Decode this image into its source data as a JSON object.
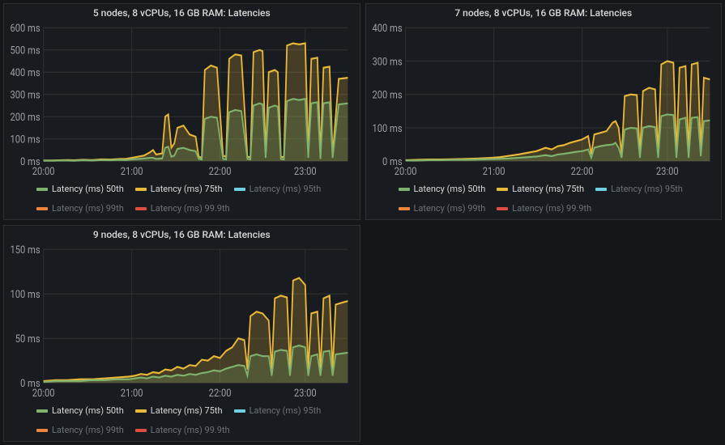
{
  "background_color": "#141619",
  "panel_background": "#181b1f",
  "grid_color": "#2c2f33",
  "tick_text_color": "#9aa0a6",
  "legend_text_color": "#d8d9da",
  "legend_dim_color": "#6e7277",
  "line_width": 1.8,
  "area_opacity": 0.22,
  "legend_items": [
    {
      "label": "Latency (ms) 50th",
      "color": "#7EB26D",
      "dim": false
    },
    {
      "label": "Latency (ms) 75th",
      "color": "#EAB839",
      "dim": false
    },
    {
      "label": "Latency (ms) 95th",
      "color": "#6ED0E0",
      "dim": true
    },
    {
      "label": "Latency (ms) 99th",
      "color": "#EF843C",
      "dim": true
    },
    {
      "label": "Latency (ms) 99.9th",
      "color": "#E24D42",
      "dim": true
    }
  ],
  "x_ticks": [
    {
      "t": 0,
      "label": "20:00"
    },
    {
      "t": 0.29,
      "label": "21:00"
    },
    {
      "t": 0.58,
      "label": "22:00"
    },
    {
      "t": 0.86,
      "label": "23:00"
    }
  ],
  "series_keys": [
    "s50",
    "s75"
  ],
  "series_colors": {
    "s50": "#7EB26D",
    "s75": "#EAB839"
  },
  "panels": [
    {
      "title": "5 nodes, 8 vCPUs, 16 GB RAM: Latencies",
      "y_max": 600,
      "y_step": 100,
      "y_unit": "ms",
      "points": [
        {
          "t": 0.0,
          "s50": 2,
          "s75": 3
        },
        {
          "t": 0.03,
          "s50": 2,
          "s75": 3
        },
        {
          "t": 0.05,
          "s50": 3,
          "s75": 4
        },
        {
          "t": 0.08,
          "s50": 3,
          "s75": 5
        },
        {
          "t": 0.1,
          "s50": 2,
          "s75": 4
        },
        {
          "t": 0.13,
          "s50": 4,
          "s75": 6
        },
        {
          "t": 0.16,
          "s50": 3,
          "s75": 5
        },
        {
          "t": 0.19,
          "s50": 5,
          "s75": 8
        },
        {
          "t": 0.22,
          "s50": 4,
          "s75": 7
        },
        {
          "t": 0.25,
          "s50": 6,
          "s75": 10
        },
        {
          "t": 0.27,
          "s50": 5,
          "s75": 10
        },
        {
          "t": 0.29,
          "s50": 8,
          "s75": 15
        },
        {
          "t": 0.31,
          "s50": 10,
          "s75": 20
        },
        {
          "t": 0.33,
          "s50": 12,
          "s75": 25
        },
        {
          "t": 0.35,
          "s50": 15,
          "s75": 40
        },
        {
          "t": 0.36,
          "s50": 15,
          "s75": 50
        },
        {
          "t": 0.37,
          "s50": 10,
          "s75": 30
        },
        {
          "t": 0.39,
          "s50": 12,
          "s75": 35
        },
        {
          "t": 0.4,
          "s50": 60,
          "s75": 200
        },
        {
          "t": 0.41,
          "s50": 65,
          "s75": 210
        },
        {
          "t": 0.42,
          "s50": 20,
          "s75": 60
        },
        {
          "t": 0.43,
          "s50": 25,
          "s75": 80
        },
        {
          "t": 0.44,
          "s50": 55,
          "s75": 150
        },
        {
          "t": 0.46,
          "s50": 60,
          "s75": 160
        },
        {
          "t": 0.48,
          "s50": 50,
          "s75": 120
        },
        {
          "t": 0.5,
          "s50": 45,
          "s75": 110
        },
        {
          "t": 0.51,
          "s50": 10,
          "s75": 20
        },
        {
          "t": 0.52,
          "s50": 8,
          "s75": 15
        },
        {
          "t": 0.53,
          "s50": 190,
          "s75": 410
        },
        {
          "t": 0.55,
          "s50": 200,
          "s75": 430
        },
        {
          "t": 0.57,
          "s50": 195,
          "s75": 420
        },
        {
          "t": 0.59,
          "s50": 10,
          "s75": 25
        },
        {
          "t": 0.6,
          "s50": 8,
          "s75": 20
        },
        {
          "t": 0.61,
          "s50": 220,
          "s75": 460
        },
        {
          "t": 0.63,
          "s50": 230,
          "s75": 480
        },
        {
          "t": 0.65,
          "s50": 225,
          "s75": 475
        },
        {
          "t": 0.67,
          "s50": 10,
          "s75": 20
        },
        {
          "t": 0.68,
          "s50": 8,
          "s75": 18
        },
        {
          "t": 0.69,
          "s50": 250,
          "s75": 490
        },
        {
          "t": 0.71,
          "s50": 260,
          "s75": 500
        },
        {
          "t": 0.72,
          "s50": 255,
          "s75": 495
        },
        {
          "t": 0.73,
          "s50": 15,
          "s75": 30
        },
        {
          "t": 0.74,
          "s50": 240,
          "s75": 400
        },
        {
          "t": 0.76,
          "s50": 250,
          "s75": 410
        },
        {
          "t": 0.77,
          "s50": 245,
          "s75": 400
        },
        {
          "t": 0.78,
          "s50": 10,
          "s75": 20
        },
        {
          "t": 0.79,
          "s50": 8,
          "s75": 18
        },
        {
          "t": 0.8,
          "s50": 270,
          "s75": 520
        },
        {
          "t": 0.82,
          "s50": 280,
          "s75": 530
        },
        {
          "t": 0.84,
          "s50": 275,
          "s75": 525
        },
        {
          "t": 0.86,
          "s50": 280,
          "s75": 530
        },
        {
          "t": 0.87,
          "s50": 15,
          "s75": 30
        },
        {
          "t": 0.88,
          "s50": 260,
          "s75": 460
        },
        {
          "t": 0.9,
          "s50": 265,
          "s75": 465
        },
        {
          "t": 0.91,
          "s50": 10,
          "s75": 20
        },
        {
          "t": 0.92,
          "s50": 260,
          "s75": 420
        },
        {
          "t": 0.94,
          "s50": 265,
          "s75": 425
        },
        {
          "t": 0.95,
          "s50": 15,
          "s75": 30
        },
        {
          "t": 0.97,
          "s50": 255,
          "s75": 370
        },
        {
          "t": 1.0,
          "s50": 260,
          "s75": 375
        }
      ]
    },
    {
      "title": "7 nodes, 8 vCPUs, 16 GB RAM: Latencies",
      "y_max": 400,
      "y_step": 100,
      "y_unit": "ms",
      "points": [
        {
          "t": 0.0,
          "s50": 2,
          "s75": 3
        },
        {
          "t": 0.04,
          "s50": 2,
          "s75": 4
        },
        {
          "t": 0.08,
          "s50": 3,
          "s75": 5
        },
        {
          "t": 0.12,
          "s50": 3,
          "s75": 5
        },
        {
          "t": 0.16,
          "s50": 4,
          "s75": 6
        },
        {
          "t": 0.2,
          "s50": 4,
          "s75": 7
        },
        {
          "t": 0.24,
          "s50": 5,
          "s75": 8
        },
        {
          "t": 0.28,
          "s50": 6,
          "s75": 10
        },
        {
          "t": 0.31,
          "s50": 7,
          "s75": 12
        },
        {
          "t": 0.34,
          "s50": 8,
          "s75": 16
        },
        {
          "t": 0.37,
          "s50": 10,
          "s75": 20
        },
        {
          "t": 0.4,
          "s50": 12,
          "s75": 25
        },
        {
          "t": 0.43,
          "s50": 14,
          "s75": 30
        },
        {
          "t": 0.46,
          "s50": 18,
          "s75": 40
        },
        {
          "t": 0.48,
          "s50": 15,
          "s75": 35
        },
        {
          "t": 0.5,
          "s50": 20,
          "s75": 45
        },
        {
          "t": 0.52,
          "s50": 22,
          "s75": 48
        },
        {
          "t": 0.54,
          "s50": 25,
          "s75": 55
        },
        {
          "t": 0.56,
          "s50": 28,
          "s75": 60
        },
        {
          "t": 0.58,
          "s50": 30,
          "s75": 65
        },
        {
          "t": 0.6,
          "s50": 35,
          "s75": 75
        },
        {
          "t": 0.61,
          "s50": 10,
          "s75": 20
        },
        {
          "t": 0.62,
          "s50": 40,
          "s75": 80
        },
        {
          "t": 0.64,
          "s50": 45,
          "s75": 85
        },
        {
          "t": 0.66,
          "s50": 48,
          "s75": 90
        },
        {
          "t": 0.68,
          "s50": 50,
          "s75": 115
        },
        {
          "t": 0.69,
          "s50": 55,
          "s75": 120
        },
        {
          "t": 0.7,
          "s50": 40,
          "s75": 100
        },
        {
          "t": 0.71,
          "s50": 10,
          "s75": 20
        },
        {
          "t": 0.72,
          "s50": 95,
          "s75": 195
        },
        {
          "t": 0.74,
          "s50": 100,
          "s75": 200
        },
        {
          "t": 0.76,
          "s50": 98,
          "s75": 198
        },
        {
          "t": 0.77,
          "s50": 10,
          "s75": 20
        },
        {
          "t": 0.78,
          "s50": 100,
          "s75": 210
        },
        {
          "t": 0.8,
          "s50": 105,
          "s75": 220
        },
        {
          "t": 0.82,
          "s50": 102,
          "s75": 215
        },
        {
          "t": 0.83,
          "s50": 10,
          "s75": 20
        },
        {
          "t": 0.84,
          "s50": 135,
          "s75": 290
        },
        {
          "t": 0.86,
          "s50": 140,
          "s75": 300
        },
        {
          "t": 0.88,
          "s50": 138,
          "s75": 295
        },
        {
          "t": 0.89,
          "s50": 10,
          "s75": 20
        },
        {
          "t": 0.9,
          "s50": 125,
          "s75": 280
        },
        {
          "t": 0.92,
          "s50": 130,
          "s75": 285
        },
        {
          "t": 0.93,
          "s50": 10,
          "s75": 20
        },
        {
          "t": 0.94,
          "s50": 130,
          "s75": 290
        },
        {
          "t": 0.96,
          "s50": 132,
          "s75": 295
        },
        {
          "t": 0.97,
          "s50": 15,
          "s75": 30
        },
        {
          "t": 0.98,
          "s50": 120,
          "s75": 250
        },
        {
          "t": 1.0,
          "s50": 122,
          "s75": 245
        }
      ]
    },
    {
      "title": "9 nodes, 8 vCPUs, 16 GB RAM: Latencies",
      "y_max": 150,
      "y_step": 50,
      "y_unit": "ms",
      "points": [
        {
          "t": 0.0,
          "s50": 1,
          "s75": 2
        },
        {
          "t": 0.04,
          "s50": 2,
          "s75": 3
        },
        {
          "t": 0.08,
          "s50": 2,
          "s75": 3
        },
        {
          "t": 0.12,
          "s50": 2,
          "s75": 4
        },
        {
          "t": 0.16,
          "s50": 3,
          "s75": 4
        },
        {
          "t": 0.2,
          "s50": 3,
          "s75": 5
        },
        {
          "t": 0.24,
          "s50": 4,
          "s75": 6
        },
        {
          "t": 0.28,
          "s50": 4,
          "s75": 7
        },
        {
          "t": 0.3,
          "s50": 5,
          "s75": 8
        },
        {
          "t": 0.32,
          "s50": 6,
          "s75": 10
        },
        {
          "t": 0.34,
          "s50": 5,
          "s75": 9
        },
        {
          "t": 0.36,
          "s50": 7,
          "s75": 12
        },
        {
          "t": 0.38,
          "s50": 6,
          "s75": 11
        },
        {
          "t": 0.4,
          "s50": 8,
          "s75": 15
        },
        {
          "t": 0.42,
          "s50": 7,
          "s75": 14
        },
        {
          "t": 0.44,
          "s50": 9,
          "s75": 18
        },
        {
          "t": 0.46,
          "s50": 8,
          "s75": 16
        },
        {
          "t": 0.48,
          "s50": 10,
          "s75": 20
        },
        {
          "t": 0.5,
          "s50": 9,
          "s75": 19
        },
        {
          "t": 0.52,
          "s50": 11,
          "s75": 26
        },
        {
          "t": 0.54,
          "s50": 12,
          "s75": 25
        },
        {
          "t": 0.56,
          "s50": 14,
          "s75": 30
        },
        {
          "t": 0.58,
          "s50": 13,
          "s75": 28
        },
        {
          "t": 0.6,
          "s50": 16,
          "s75": 36
        },
        {
          "t": 0.62,
          "s50": 18,
          "s75": 40
        },
        {
          "t": 0.64,
          "s50": 20,
          "s75": 50
        },
        {
          "t": 0.66,
          "s50": 19,
          "s75": 48
        },
        {
          "t": 0.67,
          "s50": 8,
          "s75": 15
        },
        {
          "t": 0.68,
          "s50": 30,
          "s75": 75
        },
        {
          "t": 0.7,
          "s50": 32,
          "s75": 80
        },
        {
          "t": 0.72,
          "s50": 30,
          "s75": 78
        },
        {
          "t": 0.74,
          "s50": 30,
          "s75": 70
        },
        {
          "t": 0.75,
          "s50": 8,
          "s75": 15
        },
        {
          "t": 0.76,
          "s50": 35,
          "s75": 95
        },
        {
          "t": 0.78,
          "s50": 37,
          "s75": 98
        },
        {
          "t": 0.8,
          "s50": 36,
          "s75": 96
        },
        {
          "t": 0.81,
          "s50": 8,
          "s75": 15
        },
        {
          "t": 0.82,
          "s50": 40,
          "s75": 115
        },
        {
          "t": 0.84,
          "s50": 42,
          "s75": 118
        },
        {
          "t": 0.86,
          "s50": 40,
          "s75": 110
        },
        {
          "t": 0.87,
          "s50": 8,
          "s75": 15
        },
        {
          "t": 0.88,
          "s50": 30,
          "s75": 78
        },
        {
          "t": 0.9,
          "s50": 32,
          "s75": 80
        },
        {
          "t": 0.91,
          "s50": 8,
          "s75": 15
        },
        {
          "t": 0.92,
          "s50": 35,
          "s75": 95
        },
        {
          "t": 0.94,
          "s50": 36,
          "s75": 98
        },
        {
          "t": 0.95,
          "s50": 8,
          "s75": 15
        },
        {
          "t": 0.96,
          "s50": 32,
          "s75": 88
        },
        {
          "t": 0.98,
          "s50": 33,
          "s75": 90
        },
        {
          "t": 1.0,
          "s50": 34,
          "s75": 92
        }
      ]
    }
  ]
}
